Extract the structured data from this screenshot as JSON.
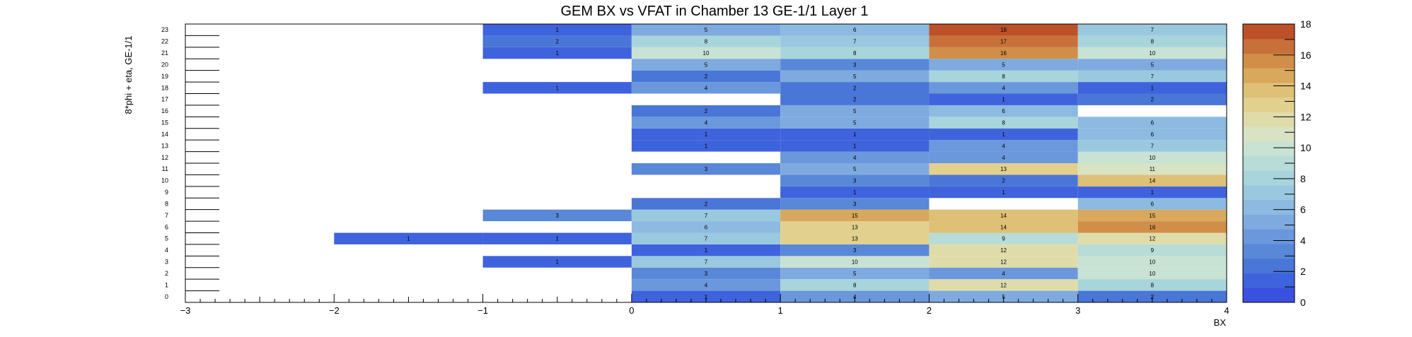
{
  "chart_data": {
    "type": "heatmap",
    "title": "GEM BX vs VFAT in Chamber 13 GE-1/1 Layer 1",
    "xlabel": "BX",
    "ylabel": "8*phi + eta, GE-1/1",
    "xlim": [
      -3,
      4
    ],
    "ylim": [
      0,
      24
    ],
    "x_ticks": [
      -3,
      -2,
      -1,
      0,
      1,
      2,
      3,
      4
    ],
    "x_tick_labels": [
      "−3",
      "−2",
      "−1",
      "0",
      "1",
      "2",
      "3",
      "4"
    ],
    "y_tick_labels": [
      "0",
      "1",
      "2",
      "3",
      "4",
      "5",
      "6",
      "7",
      "8",
      "9",
      "10",
      "11",
      "12",
      "13",
      "14",
      "15",
      "16",
      "17",
      "18",
      "19",
      "20",
      "21",
      "22",
      "23"
    ],
    "zlim": [
      0,
      18
    ],
    "z_ticks": [
      0,
      2,
      4,
      6,
      8,
      10,
      12,
      14,
      16,
      18
    ],
    "z_tick_labels": [
      "0",
      "2",
      "4",
      "6",
      "8",
      "10",
      "12",
      "14",
      "16",
      "18"
    ],
    "palette": [
      "#3a50e0",
      "#3f63dc",
      "#4a76d8",
      "#5a88d8",
      "#6b98dc",
      "#7eaadf",
      "#8cbae0",
      "#9ac8df",
      "#a8d4dc",
      "#b8dcd7",
      "#c8e2d4",
      "#d8e3c4",
      "#e0dcaa",
      "#e2d08e",
      "#dec076",
      "#d8a85c",
      "#d08e48",
      "#c8703a",
      "#bc5028"
    ],
    "cells": [
      {
        "bx": 0,
        "row": 0,
        "value": 1,
        "label": "1"
      },
      {
        "bx": 1,
        "row": 0,
        "value": 4,
        "label": "4"
      },
      {
        "bx": 2,
        "row": 0,
        "value": 5,
        "label": "5"
      },
      {
        "bx": 3,
        "row": 0,
        "value": 2,
        "label": "2"
      },
      {
        "bx": 0,
        "row": 1,
        "value": 4,
        "label": "4"
      },
      {
        "bx": 1,
        "row": 1,
        "value": 8,
        "label": "8"
      },
      {
        "bx": 2,
        "row": 1,
        "value": 12,
        "label": "12"
      },
      {
        "bx": 3,
        "row": 1,
        "value": 8,
        "label": "8"
      },
      {
        "bx": 0,
        "row": 2,
        "value": 3,
        "label": "3"
      },
      {
        "bx": 1,
        "row": 2,
        "value": 5,
        "label": "5"
      },
      {
        "bx": 2,
        "row": 2,
        "value": 4,
        "label": "4"
      },
      {
        "bx": 3,
        "row": 2,
        "value": 10,
        "label": "10"
      },
      {
        "bx": -1,
        "row": 3,
        "value": 1,
        "label": "1"
      },
      {
        "bx": 0,
        "row": 3,
        "value": 7,
        "label": "7"
      },
      {
        "bx": 1,
        "row": 3,
        "value": 10,
        "label": "10"
      },
      {
        "bx": 2,
        "row": 3,
        "value": 12,
        "label": "12"
      },
      {
        "bx": 3,
        "row": 3,
        "value": 10,
        "label": "10"
      },
      {
        "bx": 0,
        "row": 4,
        "value": 1,
        "label": "1"
      },
      {
        "bx": 1,
        "row": 4,
        "value": 3,
        "label": "3"
      },
      {
        "bx": 2,
        "row": 4,
        "value": 12,
        "label": "12"
      },
      {
        "bx": 3,
        "row": 4,
        "value": 9,
        "label": "9"
      },
      {
        "bx": -2,
        "row": 5,
        "value": 1,
        "label": "1"
      },
      {
        "bx": -1,
        "row": 5,
        "value": 1,
        "label": "1"
      },
      {
        "bx": 0,
        "row": 5,
        "value": 7,
        "label": "7"
      },
      {
        "bx": 1,
        "row": 5,
        "value": 13,
        "label": "13"
      },
      {
        "bx": 2,
        "row": 5,
        "value": 9,
        "label": "9"
      },
      {
        "bx": 3,
        "row": 5,
        "value": 12,
        "label": "12"
      },
      {
        "bx": 0,
        "row": 6,
        "value": 6,
        "label": "6"
      },
      {
        "bx": 1,
        "row": 6,
        "value": 13,
        "label": "13"
      },
      {
        "bx": 2,
        "row": 6,
        "value": 14,
        "label": "14"
      },
      {
        "bx": 3,
        "row": 6,
        "value": 16,
        "label": "16"
      },
      {
        "bx": -1,
        "row": 7,
        "value": 3,
        "label": "3"
      },
      {
        "bx": 0,
        "row": 7,
        "value": 7,
        "label": "7"
      },
      {
        "bx": 1,
        "row": 7,
        "value": 15,
        "label": "15"
      },
      {
        "bx": 2,
        "row": 7,
        "value": 14,
        "label": "14"
      },
      {
        "bx": 3,
        "row": 7,
        "value": 15,
        "label": "15"
      },
      {
        "bx": 0,
        "row": 8,
        "value": 2,
        "label": "2"
      },
      {
        "bx": 1,
        "row": 8,
        "value": 3,
        "label": "3"
      },
      {
        "bx": 3,
        "row": 8,
        "value": 6,
        "label": "6"
      },
      {
        "bx": 1,
        "row": 9,
        "value": 1,
        "label": "1"
      },
      {
        "bx": 2,
        "row": 9,
        "value": 1,
        "label": "1"
      },
      {
        "bx": 3,
        "row": 9,
        "value": 1,
        "label": "1"
      },
      {
        "bx": 1,
        "row": 10,
        "value": 3,
        "label": "3"
      },
      {
        "bx": 2,
        "row": 10,
        "value": 2,
        "label": "2"
      },
      {
        "bx": 3,
        "row": 10,
        "value": 14,
        "label": "14"
      },
      {
        "bx": 0,
        "row": 11,
        "value": 3,
        "label": "3"
      },
      {
        "bx": 1,
        "row": 11,
        "value": 5,
        "label": "5"
      },
      {
        "bx": 2,
        "row": 11,
        "value": 13,
        "label": "13"
      },
      {
        "bx": 3,
        "row": 11,
        "value": 11,
        "label": "11"
      },
      {
        "bx": 1,
        "row": 12,
        "value": 4,
        "label": "4"
      },
      {
        "bx": 2,
        "row": 12,
        "value": 4,
        "label": "4"
      },
      {
        "bx": 3,
        "row": 12,
        "value": 10,
        "label": "10"
      },
      {
        "bx": 0,
        "row": 13,
        "value": 1,
        "label": "1"
      },
      {
        "bx": 1,
        "row": 13,
        "value": 1,
        "label": "1"
      },
      {
        "bx": 2,
        "row": 13,
        "value": 4,
        "label": "4"
      },
      {
        "bx": 3,
        "row": 13,
        "value": 7,
        "label": "7"
      },
      {
        "bx": 0,
        "row": 14,
        "value": 1,
        "label": "1"
      },
      {
        "bx": 1,
        "row": 14,
        "value": 1,
        "label": "1"
      },
      {
        "bx": 2,
        "row": 14,
        "value": 1,
        "label": "1"
      },
      {
        "bx": 3,
        "row": 14,
        "value": 6,
        "label": "6"
      },
      {
        "bx": 0,
        "row": 15,
        "value": 4,
        "label": "4"
      },
      {
        "bx": 1,
        "row": 15,
        "value": 5,
        "label": "5"
      },
      {
        "bx": 2,
        "row": 15,
        "value": 8,
        "label": "8"
      },
      {
        "bx": 3,
        "row": 15,
        "value": 6,
        "label": "6"
      },
      {
        "bx": 0,
        "row": 16,
        "value": 2,
        "label": "2"
      },
      {
        "bx": 1,
        "row": 16,
        "value": 5,
        "label": "5"
      },
      {
        "bx": 2,
        "row": 16,
        "value": 6,
        "label": "6"
      },
      {
        "bx": 1,
        "row": 17,
        "value": 2,
        "label": "2"
      },
      {
        "bx": 2,
        "row": 17,
        "value": 1,
        "label": "1"
      },
      {
        "bx": 3,
        "row": 17,
        "value": 2,
        "label": "2"
      },
      {
        "bx": -1,
        "row": 18,
        "value": 1,
        "label": "1"
      },
      {
        "bx": 0,
        "row": 18,
        "value": 4,
        "label": "4"
      },
      {
        "bx": 1,
        "row": 18,
        "value": 2,
        "label": "2"
      },
      {
        "bx": 2,
        "row": 18,
        "value": 4,
        "label": "4"
      },
      {
        "bx": 3,
        "row": 18,
        "value": 1,
        "label": "1"
      },
      {
        "bx": 0,
        "row": 19,
        "value": 2,
        "label": "2"
      },
      {
        "bx": 1,
        "row": 19,
        "value": 5,
        "label": "5"
      },
      {
        "bx": 2,
        "row": 19,
        "value": 8,
        "label": "8"
      },
      {
        "bx": 3,
        "row": 19,
        "value": 7,
        "label": "7"
      },
      {
        "bx": 0,
        "row": 20,
        "value": 5,
        "label": "5"
      },
      {
        "bx": 1,
        "row": 20,
        "value": 3,
        "label": "3"
      },
      {
        "bx": 2,
        "row": 20,
        "value": 5,
        "label": "5"
      },
      {
        "bx": 3,
        "row": 20,
        "value": 5,
        "label": "5"
      },
      {
        "bx": -1,
        "row": 21,
        "value": 1,
        "label": "1"
      },
      {
        "bx": 0,
        "row": 21,
        "value": 10,
        "label": "10"
      },
      {
        "bx": 1,
        "row": 21,
        "value": 8,
        "label": "8"
      },
      {
        "bx": 2,
        "row": 21,
        "value": 16,
        "label": "16"
      },
      {
        "bx": 3,
        "row": 21,
        "value": 10,
        "label": "10"
      },
      {
        "bx": -1,
        "row": 22,
        "value": 2,
        "label": "2"
      },
      {
        "bx": 0,
        "row": 22,
        "value": 8,
        "label": "8"
      },
      {
        "bx": 1,
        "row": 22,
        "value": 7,
        "label": "7"
      },
      {
        "bx": 2,
        "row": 22,
        "value": 17,
        "label": "17"
      },
      {
        "bx": 3,
        "row": 22,
        "value": 8,
        "label": "8"
      },
      {
        "bx": -1,
        "row": 23,
        "value": 1,
        "label": "1"
      },
      {
        "bx": 0,
        "row": 23,
        "value": 5,
        "label": "5"
      },
      {
        "bx": 1,
        "row": 23,
        "value": 6,
        "label": "6"
      },
      {
        "bx": 2,
        "row": 23,
        "value": 18,
        "label": "18"
      },
      {
        "bx": 3,
        "row": 23,
        "value": 7,
        "label": "7"
      }
    ]
  }
}
